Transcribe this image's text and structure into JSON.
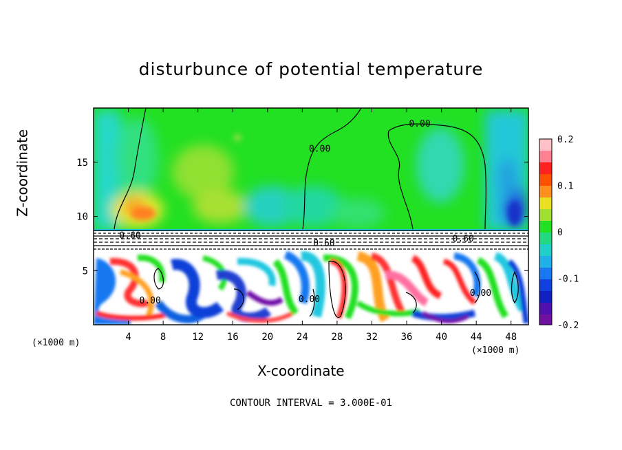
{
  "chart_data": {
    "type": "heatmap",
    "title": "disturbunce of potential temperature",
    "xlabel": "X-coordinate",
    "ylabel": "Z-coordinate",
    "x_unit": "(×1000 m)",
    "xlim": [
      0,
      50
    ],
    "ylim": [
      0,
      20
    ],
    "x_ticks": [
      4,
      8,
      12,
      16,
      20,
      24,
      28,
      32,
      36,
      40,
      44,
      48
    ],
    "y_ticks": [
      5,
      10,
      15
    ],
    "colorbar": {
      "range": [
        -0.2,
        0.2
      ],
      "ticks": [
        "0.2",
        "0.1",
        "0",
        "-0.1",
        "-0.2"
      ],
      "tick_values": [
        0.2,
        0.1,
        0,
        -0.1,
        -0.2
      ]
    },
    "contour_labels": [
      {
        "text": "0.00",
        "x": 37.5,
        "y": 18.6
      },
      {
        "text": "0.00",
        "x": 26.0,
        "y": 16.3
      },
      {
        "text": "0.60",
        "x": 4.2,
        "y": 8.3
      },
      {
        "text": "0.60",
        "x": 26.5,
        "y": 7.6
      },
      {
        "text": "0.60",
        "x": 42.5,
        "y": 8.0
      },
      {
        "text": "0.00",
        "x": 6.5,
        "y": 2.3
      },
      {
        "text": "0.00",
        "x": 24.8,
        "y": 2.4
      },
      {
        "text": "0.00",
        "x": 44.5,
        "y": 3.0
      }
    ],
    "footer": "CONTOUR INTERVAL = 3.000E-01"
  }
}
